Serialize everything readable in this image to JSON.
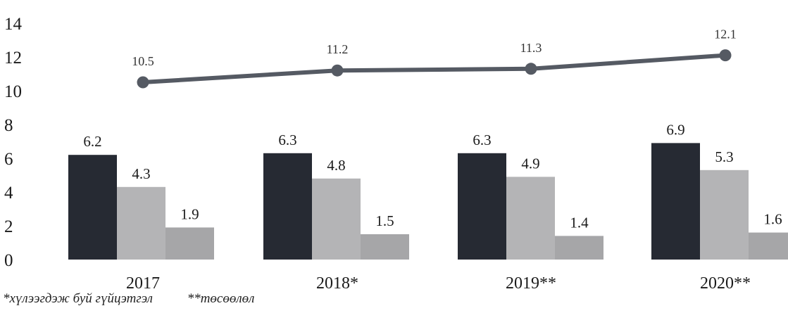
{
  "chart_data": {
    "type": "bar",
    "categories": [
      "2017",
      "2018*",
      "2019**",
      "2020**"
    ],
    "ylim": [
      0,
      14
    ],
    "yticks": [
      0,
      2,
      4,
      6,
      8,
      10,
      12,
      14
    ],
    "series": [
      {
        "values": [
          6.2,
          6.3,
          6.3,
          6.9
        ],
        "labels": [
          "6.2",
          "6.3",
          "6.3",
          "6.9"
        ],
        "color": "#262a33"
      },
      {
        "values": [
          4.3,
          4.8,
          4.9,
          5.3
        ],
        "labels": [
          "4.3",
          "4.8",
          "4.9",
          "5.3"
        ],
        "color": "#b4b4b6"
      },
      {
        "values": [
          1.9,
          1.5,
          1.4,
          1.6
        ],
        "labels": [
          "1.9",
          "1.5",
          "1.4",
          "1.6"
        ],
        "color": "#a6a6a8"
      }
    ],
    "line": {
      "type": "line",
      "values": [
        10.5,
        11.2,
        11.3,
        12.1
      ],
      "labels": [
        "10.5",
        "11.2",
        "11.3",
        "12.1"
      ],
      "color": "#555a63"
    }
  },
  "footnotes": {
    "note1": "*хүлээгдэж буй гүйцэтгэл",
    "note2": "**төсөөлөл"
  }
}
